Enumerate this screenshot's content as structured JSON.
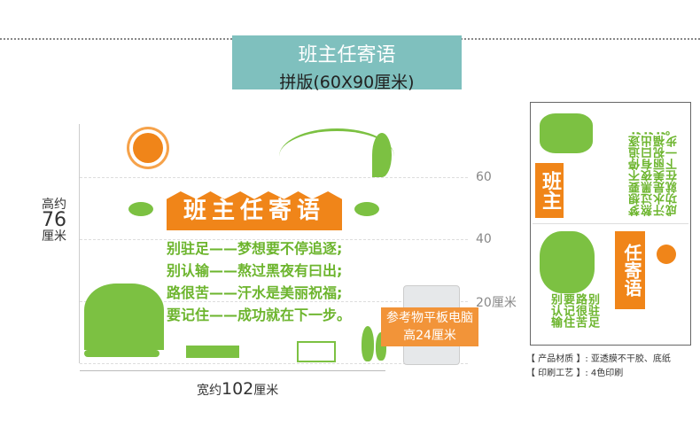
{
  "header": {
    "title": "班主任寄语",
    "subtitle": "拼版(60X90厘米)"
  },
  "scale": {
    "ticks": [
      "60",
      "40",
      "20厘米"
    ],
    "height_label": [
      "高约",
      "76",
      "厘米"
    ],
    "width_label": [
      "宽约",
      "102",
      "厘米"
    ]
  },
  "artwork": {
    "banner": "班主任寄语",
    "quotes": [
      "别驻足——梦想要不停追逐;",
      "别认输——熬过黑夜有曰出;",
      "路很苦——汗水是美丽祝福;",
      "要记住——成功就在下一步。"
    ]
  },
  "reference": {
    "label_line1": "参考物平板电脑",
    "label_line2": "高24厘米"
  },
  "panel": {
    "top_half_text": [
      "梦想要不停追逐;",
      "熬过黑夜有曰出;",
      "汗水是美丽祝福;",
      "成功就在下一步。"
    ],
    "top_banner": "班主",
    "bottom_banner": "任寄语",
    "bottom_half_text": [
      "别驻足",
      "路很苦",
      "要记住",
      "别认输"
    ]
  },
  "specs": [
    {
      "label": "【 产品材质 】:",
      "value": "亚透膜不干胶、底纸"
    },
    {
      "label": "【 印刷工艺 】:",
      "value": "4色印刷"
    }
  ],
  "colors": {
    "teal": "#7fc0be",
    "orange": "#f08519",
    "green": "#6db52e"
  }
}
